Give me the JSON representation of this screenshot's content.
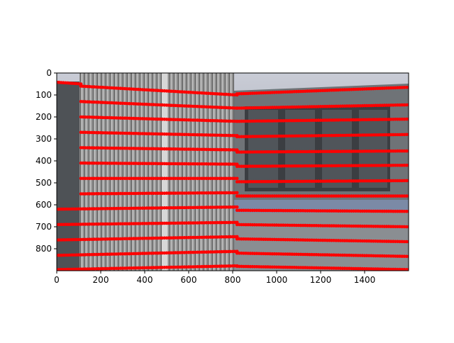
{
  "chart_data": {
    "type": "scatter",
    "title": "",
    "xlabel": "",
    "ylabel": "",
    "xlim": [
      0,
      1600
    ],
    "ylim": [
      900,
      0
    ],
    "y_inverted": true,
    "grid": false,
    "background": "photo of a building facade with vertical metal slats (left) and a grey wall with windows (right)",
    "x_ticks": [
      0,
      200,
      400,
      600,
      800,
      1000,
      1200,
      1400
    ],
    "y_ticks": [
      0,
      100,
      200,
      300,
      400,
      500,
      600,
      700,
      800
    ],
    "x_tick_labels": [
      "0",
      "200",
      "400",
      "600",
      "800",
      "1000",
      "1200",
      "1400"
    ],
    "y_tick_labels": [
      "0",
      "100",
      "200",
      "300",
      "400",
      "500",
      "600",
      "700",
      "800"
    ],
    "series": [
      {
        "marker": "circle",
        "color": "#ff0000",
        "rows": [
          {
            "x": [
              0,
              110
            ],
            "y": [
              42,
              50
            ]
          },
          {
            "x": [
              110,
              820
            ],
            "y": [
              60,
              100
            ]
          },
          {
            "x": [
              110,
              820
            ],
            "y": [
              130,
              160
            ]
          },
          {
            "x": [
              110,
              820
            ],
            "y": [
              200,
              220
            ]
          },
          {
            "x": [
              110,
              820
            ],
            "y": [
              270,
              285
            ]
          },
          {
            "x": [
              110,
              820
            ],
            "y": [
              340,
              350
            ]
          },
          {
            "x": [
              110,
              820
            ],
            "y": [
              410,
              415
            ]
          },
          {
            "x": [
              110,
              820
            ],
            "y": [
              480,
              480
            ]
          },
          {
            "x": [
              110,
              820
            ],
            "y": [
              550,
              545
            ]
          },
          {
            "x": [
              0,
              820
            ],
            "y": [
              620,
              610
            ]
          },
          {
            "x": [
              0,
              820
            ],
            "y": [
              690,
              680
            ]
          },
          {
            "x": [
              0,
              820
            ],
            "y": [
              760,
              745
            ]
          },
          {
            "x": [
              0,
              820
            ],
            "y": [
              830,
              812
            ]
          },
          {
            "x": [
              0,
              820
            ],
            "y": [
              895,
              878
            ]
          },
          {
            "x": [
              820,
              1600
            ],
            "y": [
              95,
              65
            ]
          },
          {
            "x": [
              820,
              1600
            ],
            "y": [
              160,
              145
            ]
          },
          {
            "x": [
              820,
              1600
            ],
            "y": [
              220,
              210
            ]
          },
          {
            "x": [
              820,
              1600
            ],
            "y": [
              290,
              280
            ]
          },
          {
            "x": [
              820,
              1600
            ],
            "y": [
              360,
              355
            ]
          },
          {
            "x": [
              820,
              1600
            ],
            "y": [
              425,
              420
            ]
          },
          {
            "x": [
              820,
              1600
            ],
            "y": [
              495,
              490
            ]
          },
          {
            "x": [
              820,
              1600
            ],
            "y": [
              560,
              560
            ]
          },
          {
            "x": [
              820,
              1600
            ],
            "y": [
              625,
              630
            ]
          },
          {
            "x": [
              820,
              1600
            ],
            "y": [
              690,
              700
            ]
          },
          {
            "x": [
              820,
              1600
            ],
            "y": [
              755,
              768
            ]
          },
          {
            "x": [
              820,
              1600
            ],
            "y": [
              820,
              835
            ]
          },
          {
            "x": [
              820,
              1600
            ],
            "y": [
              880,
              895
            ]
          }
        ]
      }
    ]
  }
}
